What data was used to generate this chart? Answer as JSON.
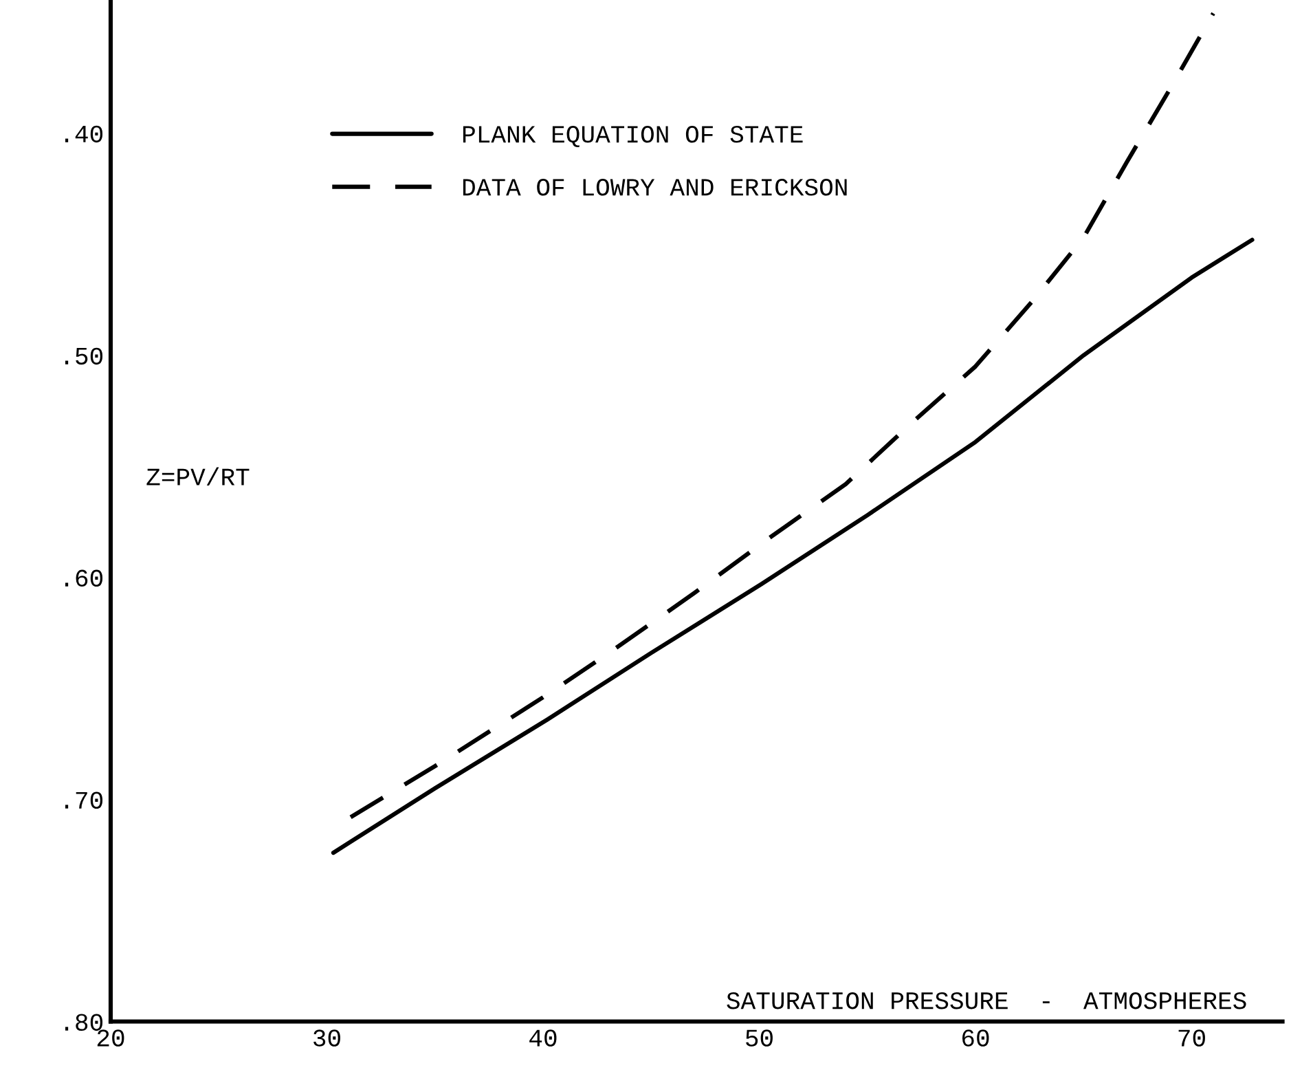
{
  "chart_data": {
    "type": "line",
    "xlabel": "SATURATION PRESSURE  -  ATMOSPHERES",
    "ylabel": "Z=PV/RT",
    "xlim": [
      20,
      74.2
    ],
    "xticks": [
      20,
      30,
      40,
      50,
      60,
      70
    ],
    "ylim": [
      0.8,
      0.34
    ],
    "yticks": [
      {
        "value": 0.4,
        "label": ".40"
      },
      {
        "value": 0.5,
        "label": ".50"
      },
      {
        "value": 0.6,
        "label": ".60"
      },
      {
        "value": 0.7,
        "label": ".70"
      },
      {
        "value": 0.8,
        "label": ".80"
      }
    ],
    "grid": false,
    "legend": "top left",
    "series": [
      {
        "name": "PLANK EQUATION OF STATE",
        "color": "#000000",
        "line_style": "solid",
        "x": [
          30.3,
          35,
          40.2,
          45,
          50.1,
          55,
          60,
          65,
          70,
          72.8
        ],
        "values": [
          0.724,
          0.695,
          0.664,
          0.634,
          0.603,
          0.572,
          0.539,
          0.5,
          0.465,
          0.448
        ]
      },
      {
        "name": "DATA OF LOWRY AND ERICKSON",
        "color": "#000000",
        "line_style": "dashed",
        "x": [
          31.1,
          35,
          40,
          43.2,
          47,
          50.5,
          54,
          57.1,
          60,
          62.6,
          65,
          67,
          69,
          71
        ],
        "values": [
          0.708,
          0.685,
          0.654,
          0.633,
          0.607,
          0.582,
          0.558,
          0.53,
          0.505,
          0.476,
          0.447,
          0.413,
          0.38,
          0.346
        ]
      }
    ]
  }
}
